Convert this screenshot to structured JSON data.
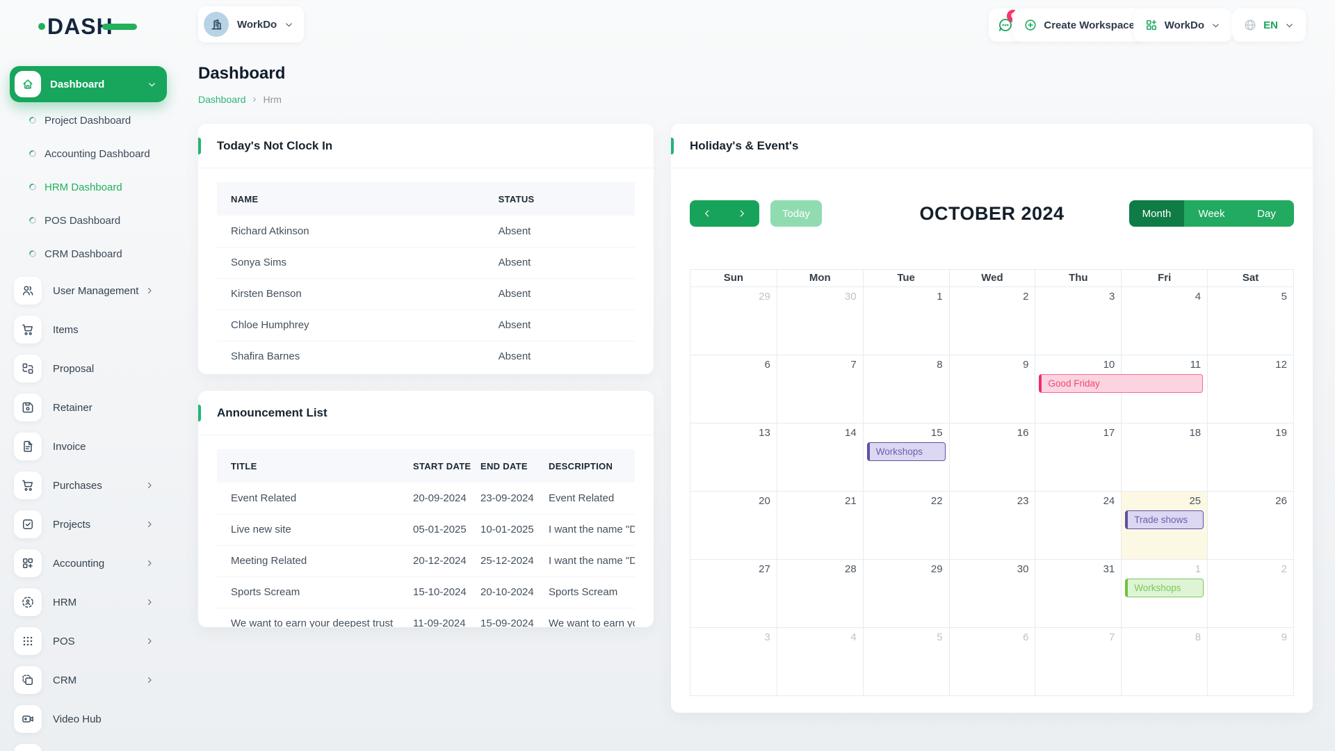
{
  "header": {
    "logo": "DASH",
    "workspace": {
      "name": "WorkDo",
      "avatar_icon": "building-icon",
      "chevron_icon": "chevron-down-icon"
    },
    "messages": {
      "icon": "chat-bubble-icon",
      "badge": "0"
    },
    "create_workspace": {
      "label": "Create Workspace",
      "icon": "plus-circle-icon"
    },
    "workdo_menu": {
      "label": "WorkDo",
      "icon": "grid-plus-icon",
      "chevron_icon": "chevron-down-icon"
    },
    "language": {
      "code": "EN",
      "icon": "globe-icon",
      "chevron_icon": "chevron-down-icon"
    }
  },
  "sidebar": {
    "dashboard": {
      "label": "Dashboard",
      "icon": "home-icon",
      "chevron_icon": "chevron-down-icon"
    },
    "dashboard_children": [
      {
        "label": "Project Dashboard",
        "active": false
      },
      {
        "label": "Accounting Dashboard",
        "active": false
      },
      {
        "label": "HRM Dashboard",
        "active": true
      },
      {
        "label": "POS Dashboard",
        "active": false
      },
      {
        "label": "CRM Dashboard",
        "active": false
      }
    ],
    "items": [
      {
        "label": "User Management",
        "icon": "users",
        "expandable": true
      },
      {
        "label": "Items",
        "icon": "cart",
        "expandable": false
      },
      {
        "label": "Proposal",
        "icon": "proposal",
        "expandable": false
      },
      {
        "label": "Retainer",
        "icon": "retainer",
        "expandable": false
      },
      {
        "label": "Invoice",
        "icon": "invoice",
        "expandable": false
      },
      {
        "label": "Purchases",
        "icon": "cart",
        "expandable": true
      },
      {
        "label": "Projects",
        "icon": "projects",
        "expandable": true
      },
      {
        "label": "Accounting",
        "icon": "accounting",
        "expandable": true
      },
      {
        "label": "HRM",
        "icon": "hrm",
        "expandable": true
      },
      {
        "label": "POS",
        "icon": "pos",
        "expandable": true
      },
      {
        "label": "CRM",
        "icon": "crm",
        "expandable": true
      },
      {
        "label": "Video Hub",
        "icon": "video",
        "expandable": false
      },
      {
        "label": "",
        "icon": "none",
        "expandable": false,
        "partial": true
      }
    ]
  },
  "page": {
    "title": "Dashboard",
    "breadcrumb": [
      {
        "label": "Dashboard",
        "link": true
      },
      {
        "label": "Hrm",
        "link": false
      }
    ]
  },
  "clock_card": {
    "title": "Today's Not Clock In",
    "columns": [
      "NAME",
      "STATUS"
    ],
    "rows": [
      [
        "Richard Atkinson",
        "Absent"
      ],
      [
        "Sonya Sims",
        "Absent"
      ],
      [
        "Kirsten Benson",
        "Absent"
      ],
      [
        "Chloe Humphrey",
        "Absent"
      ],
      [
        "Shafira Barnes",
        "Absent"
      ]
    ]
  },
  "announcement_card": {
    "title": "Announcement List",
    "columns": [
      "TITLE",
      "START DATE",
      "END DATE",
      "DESCRIPTION"
    ],
    "rows": [
      [
        "Event Related",
        "20-09-2024",
        "23-09-2024",
        "Event Related"
      ],
      [
        "Live new site",
        "05-01-2025",
        "10-01-2025",
        "I want the name \"D"
      ],
      [
        "Meeting Related",
        "20-12-2024",
        "25-12-2024",
        "I want the name \"D"
      ],
      [
        "Sports Scream",
        "15-10-2024",
        "20-10-2024",
        "Sports Scream"
      ],
      [
        "We want to earn your deepest trust",
        "11-09-2024",
        "15-09-2024",
        "We want to earn yo"
      ]
    ]
  },
  "calendar": {
    "title": "Holiday's & Event's",
    "toolbar": {
      "prev_icon": "chevron-left-icon",
      "next_icon": "chevron-right-icon",
      "today": "Today",
      "month_title": "OCTOBER 2024",
      "views": [
        "Month",
        "Week",
        "Day"
      ],
      "active_view": "Month"
    },
    "day_headers": [
      "Sun",
      "Mon",
      "Tue",
      "Wed",
      "Thu",
      "Fri",
      "Sat"
    ],
    "weeks": [
      {
        "days": [
          {
            "n": 29,
            "muted": true
          },
          {
            "n": 30,
            "muted": true
          },
          {
            "n": 1
          },
          {
            "n": 2
          },
          {
            "n": 3
          },
          {
            "n": 4
          },
          {
            "n": 5
          }
        ]
      },
      {
        "days": [
          {
            "n": 6
          },
          {
            "n": 7
          },
          {
            "n": 8
          },
          {
            "n": 9
          },
          {
            "n": 10,
            "events": [
              {
                "label": "Good Friday",
                "color": "pink",
                "span": 2
              }
            ]
          },
          {
            "n": 11
          },
          {
            "n": 12
          }
        ]
      },
      {
        "days": [
          {
            "n": 13
          },
          {
            "n": 14
          },
          {
            "n": 15,
            "events": [
              {
                "label": "Workshops",
                "color": "purple"
              }
            ]
          },
          {
            "n": 16
          },
          {
            "n": 17
          },
          {
            "n": 18
          },
          {
            "n": 19
          }
        ]
      },
      {
        "days": [
          {
            "n": 20
          },
          {
            "n": 21
          },
          {
            "n": 22
          },
          {
            "n": 23
          },
          {
            "n": 24
          },
          {
            "n": 25,
            "today": true,
            "events": [
              {
                "label": "Trade shows",
                "color": "purple"
              }
            ]
          },
          {
            "n": 26
          }
        ]
      },
      {
        "days": [
          {
            "n": 27
          },
          {
            "n": 28
          },
          {
            "n": 29
          },
          {
            "n": 30
          },
          {
            "n": 31
          },
          {
            "n": 1,
            "muted": true,
            "events": [
              {
                "label": "Workshops",
                "color": "green"
              }
            ]
          },
          {
            "n": 2,
            "muted": true
          }
        ]
      },
      {
        "days": [
          {
            "n": 3,
            "muted": true
          },
          {
            "n": 4,
            "muted": true
          },
          {
            "n": 5,
            "muted": true
          },
          {
            "n": 6,
            "muted": true
          },
          {
            "n": 7,
            "muted": true
          },
          {
            "n": 8,
            "muted": true
          },
          {
            "n": 9,
            "muted": true
          }
        ]
      }
    ]
  },
  "colors": {
    "primary_green": "#17a65c",
    "active_view_green": "#0f7c45",
    "view_green": "#22aa61",
    "today_button_green": "#90dcb0",
    "link_green": "#2eb579",
    "badge_pink": "#f5376e",
    "event_pink_bg": "#fbd4e0",
    "event_purple_bg": "#dcd7f2",
    "event_green_bg": "#def4d5",
    "today_cell_yellow": "#fcf8e3"
  }
}
